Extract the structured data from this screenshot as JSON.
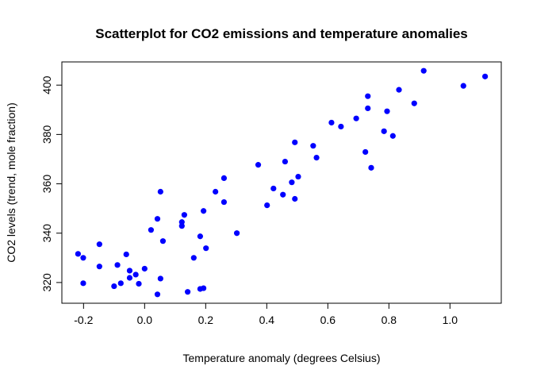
{
  "chart_data": {
    "type": "scatter",
    "title": "Scatterplot for CO2 emissions and temperature anomalies",
    "xlabel": "Temperature anomaly (degrees Celsius)",
    "ylabel": "CO2 levels (trend, mole fraction)",
    "xlim": [
      -0.271,
      1.168
    ],
    "ylim": [
      311.6,
      409.4
    ],
    "xticks": [
      -0.2,
      0.0,
      0.2,
      0.4,
      0.6,
      0.8,
      1.0
    ],
    "xtick_labels": [
      "-0.2",
      "0.0",
      "0.2",
      "0.4",
      "0.6",
      "0.8",
      "1.0"
    ],
    "yticks": [
      320,
      340,
      360,
      380,
      400
    ],
    "ytick_labels": [
      "320",
      "340",
      "360",
      "380",
      "400"
    ],
    "grid": false,
    "point_color": "#0000FF",
    "points": [
      [
        -0.218,
        331.6
      ],
      [
        -0.201,
        330.0
      ],
      [
        -0.148,
        335.5
      ],
      [
        -0.148,
        326.5
      ],
      [
        -0.201,
        319.7
      ],
      [
        -0.089,
        327.1
      ],
      [
        -0.06,
        331.4
      ],
      [
        -0.1,
        318.5
      ],
      [
        -0.078,
        319.7
      ],
      [
        -0.049,
        324.8
      ],
      [
        -0.049,
        321.9
      ],
      [
        -0.029,
        323.2
      ],
      [
        0.0,
        325.6
      ],
      [
        -0.019,
        319.5
      ],
      [
        0.021,
        341.3
      ],
      [
        0.042,
        345.8
      ],
      [
        0.052,
        356.8
      ],
      [
        0.06,
        336.8
      ],
      [
        0.052,
        321.6
      ],
      [
        0.042,
        315.2
      ],
      [
        0.122,
        344.5
      ],
      [
        0.122,
        342.9
      ],
      [
        0.13,
        347.4
      ],
      [
        0.141,
        316.2
      ],
      [
        0.161,
        330.0
      ],
      [
        0.182,
        338.7
      ],
      [
        0.193,
        349.0
      ],
      [
        0.201,
        333.9
      ],
      [
        0.182,
        317.4
      ],
      [
        0.193,
        317.7
      ],
      [
        0.232,
        356.8
      ],
      [
        0.26,
        362.3
      ],
      [
        0.26,
        352.6
      ],
      [
        0.302,
        340.0
      ],
      [
        0.914,
        405.8
      ],
      [
        1.115,
        403.5
      ],
      [
        1.044,
        399.7
      ],
      [
        0.833,
        398.1
      ],
      [
        0.731,
        395.5
      ],
      [
        0.883,
        392.6
      ],
      [
        0.731,
        390.6
      ],
      [
        0.794,
        389.4
      ],
      [
        0.693,
        386.5
      ],
      [
        0.612,
        384.8
      ],
      [
        0.643,
        383.2
      ],
      [
        0.784,
        381.3
      ],
      [
        0.813,
        379.4
      ],
      [
        0.492,
        376.8
      ],
      [
        0.552,
        375.4
      ],
      [
        0.563,
        370.6
      ],
      [
        0.723,
        372.9
      ],
      [
        0.46,
        369.0
      ],
      [
        0.372,
        367.7
      ],
      [
        0.742,
        366.5
      ],
      [
        0.503,
        362.9
      ],
      [
        0.482,
        360.6
      ],
      [
        0.422,
        358.1
      ],
      [
        0.453,
        355.6
      ],
      [
        0.492,
        353.9
      ],
      [
        0.401,
        351.3
      ]
    ]
  }
}
